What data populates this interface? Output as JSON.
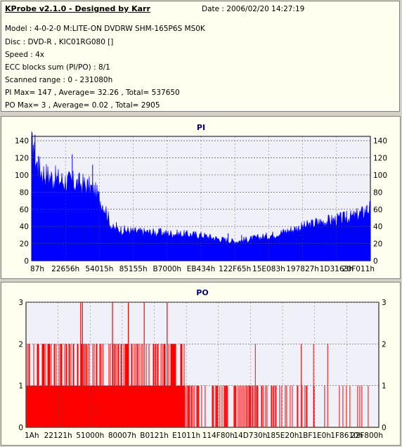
{
  "header": {
    "title": "KProbe v2.1.0 - Designed by Karr",
    "date": "Date : 2006/02/20 14:27:19",
    "lines": [
      "Model : 4-0-2-0 M:LITE-ON DVDRW SHM-165P6S MS0K",
      "Disc : DVD-R , KIC01RG080   []",
      "Speed : 4x",
      "ECC blocks sum (PI/PO) : 8/1",
      "Scanned range : 0 - 231080h",
      "PI Max= 147 , Average= 32.26 , Total= 537650",
      "PO Max= 3 , Average= 0.02 , Total= 2905"
    ]
  },
  "colors": {
    "pi": "#0000ff",
    "po": "#ff0000",
    "plot_bg": "#f0f0f8",
    "grid": "#555555"
  },
  "chart_data": [
    {
      "type": "area",
      "title": "PI",
      "ylim": [
        0,
        145
      ],
      "yticks": [
        0,
        20,
        40,
        60,
        80,
        100,
        120,
        140
      ],
      "xtick_labels": [
        "87h",
        "22656h",
        "54015h",
        "85155h",
        "B7000h",
        "EB434h",
        "122F65h",
        "15E083h",
        "197827h",
        "1D3163h",
        "20F011h"
      ],
      "grid": true,
      "profile_x_fraction": [
        0,
        0.005,
        0.02,
        0.05,
        0.08,
        0.12,
        0.15,
        0.18,
        0.2,
        0.22,
        0.23,
        0.24,
        0.3,
        0.4,
        0.5,
        0.55,
        0.6,
        0.65,
        0.7,
        0.75,
        0.8,
        0.85,
        0.9,
        0.95,
        0.98,
        1
      ],
      "profile_y": [
        125,
        118,
        100,
        92,
        88,
        85,
        83,
        78,
        68,
        55,
        42,
        35,
        32,
        30,
        28,
        24,
        21,
        24,
        27,
        32,
        37,
        42,
        45,
        48,
        53,
        58
      ],
      "spikes": [
        [
          0.01,
          147
        ],
        [
          0.005,
          135
        ],
        [
          0.02,
          122
        ],
        [
          0.12,
          124
        ],
        [
          0.18,
          112
        ],
        [
          0.25,
          45
        ],
        [
          0.38,
          38
        ],
        [
          0.58,
          32
        ],
        [
          0.62,
          30
        ],
        [
          0.84,
          50
        ],
        [
          0.93,
          58
        ],
        [
          0.99,
          65
        ]
      ]
    },
    {
      "type": "bar",
      "title": "PO",
      "ylim": [
        0,
        3
      ],
      "yticks": [
        0,
        1,
        2,
        3
      ],
      "xtick_labels": [
        "1Ah",
        "22121h",
        "51000h",
        "80007h",
        "B0121h",
        "E1011h",
        "114F80h",
        "14D730h",
        "185E20h",
        "1BF1E0h",
        "1F8610h",
        "22F800h"
      ],
      "grid": true,
      "level3_x_fraction": [
        0.155,
        0.16,
        0.245,
        0.29,
        0.335,
        0.4
      ],
      "level2_segments": [
        [
          0.0,
          0.45
        ],
        [
          0.65,
          0.655
        ],
        [
          0.78,
          0.785
        ],
        [
          0.815,
          0.82
        ],
        [
          0.855,
          0.86
        ]
      ],
      "level1_segments": [
        [
          0.0,
          0.45
        ],
        [
          0.45,
          0.97
        ]
      ]
    }
  ]
}
